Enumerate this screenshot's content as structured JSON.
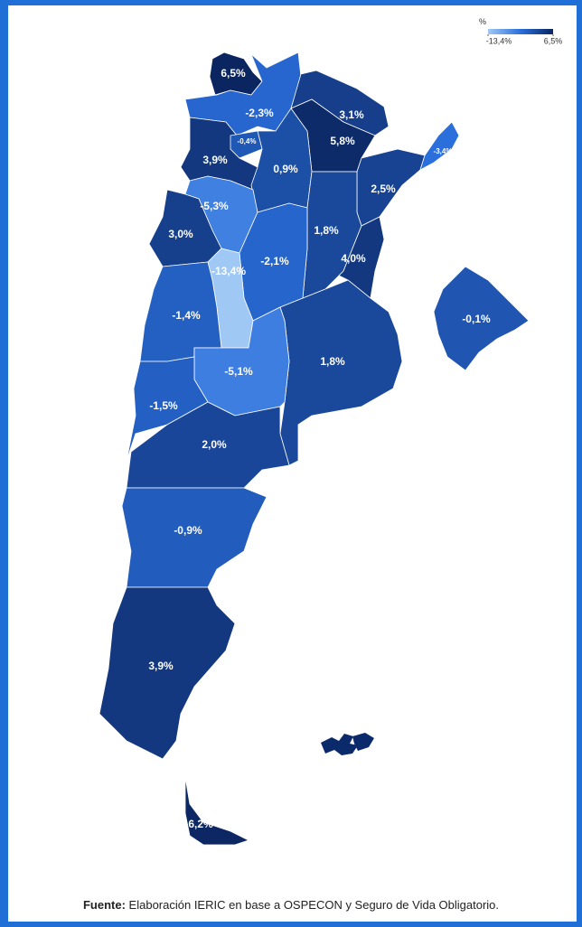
{
  "legend": {
    "title": "%",
    "min": {
      "value": -13.4,
      "label": "-13,4%"
    },
    "max": {
      "value": 6.5,
      "label": "6,5%"
    }
  },
  "regions": [
    {
      "value": 6.5,
      "label": "6,5%"
    },
    {
      "value": -2.3,
      "label": "-2,3%"
    },
    {
      "value": 3.1,
      "label": "3,1%"
    },
    {
      "value": 5.8,
      "label": "5,8%"
    },
    {
      "value": 3.9,
      "label": "3,9%"
    },
    {
      "value": 0.9,
      "label": "0,9%"
    },
    {
      "value": 2.5,
      "label": "2,5%"
    },
    {
      "value": -5.3,
      "label": "-5,3%"
    },
    {
      "value": 1.8,
      "label": "1,8%"
    },
    {
      "value": 3.0,
      "label": "3,0%"
    },
    {
      "value": -2.1,
      "label": "-2,1%"
    },
    {
      "value": 4.0,
      "label": "4,0%"
    },
    {
      "value": -13.4,
      "label": "-13,4%"
    },
    {
      "value": -0.1,
      "label": "-0,1%"
    },
    {
      "value": -1.4,
      "label": "-1,4%"
    },
    {
      "value": 1.8,
      "label": "1,8%"
    },
    {
      "value": -5.1,
      "label": "-5,1%"
    },
    {
      "value": -1.5,
      "label": "-1,5%"
    },
    {
      "value": 2.0,
      "label": "2,0%"
    },
    {
      "value": -0.9,
      "label": "-0,9%"
    },
    {
      "value": 3.9,
      "label": "3,9%"
    },
    {
      "value": 6.2,
      "label": "6,2%"
    },
    {
      "value": -0.4,
      "label": "-0,4%"
    },
    {
      "value": -3.4,
      "label": "-3,4%"
    }
  ],
  "source": {
    "lead": "Fuente:",
    "text": "Elaboración IERIC en base a OSPECON y Seguro de Vida Obligatorio."
  }
}
